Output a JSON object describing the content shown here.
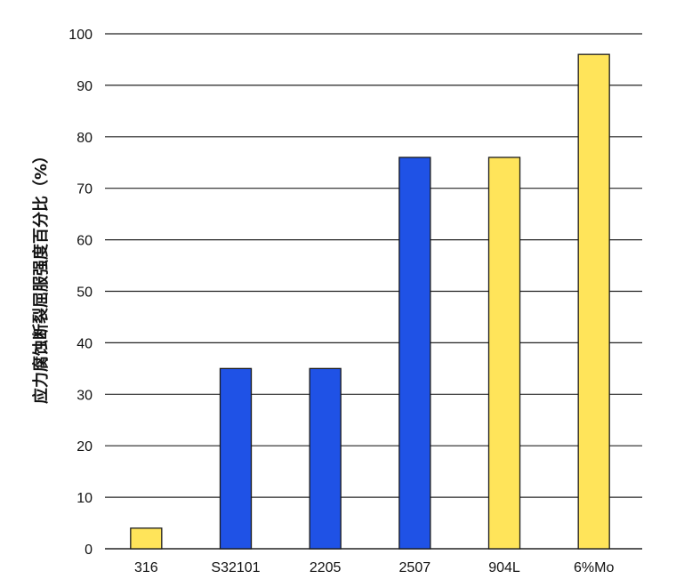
{
  "chart_data": {
    "type": "bar",
    "title": "",
    "xlabel": "",
    "ylabel": "应力腐蚀断裂屈服强度百分比（%）",
    "ylim": [
      0,
      100
    ],
    "yticks": [
      0,
      10,
      20,
      30,
      40,
      50,
      60,
      70,
      80,
      90,
      100
    ],
    "grid": true,
    "legend": "none",
    "categories": [
      "316",
      "S32101",
      "2205",
      "2507",
      "904L",
      "6%Mo"
    ],
    "values": [
      4,
      35,
      35,
      76,
      76,
      96
    ],
    "bar_colors": [
      "#FFE45A",
      "#1F52E6",
      "#1F52E6",
      "#1F52E6",
      "#FFE45A",
      "#FFE45A"
    ]
  },
  "colors": {
    "yellow": "#FFE45A",
    "blue": "#1F52E6",
    "bar_stroke": "#1a1a1a",
    "grid": "#222222"
  }
}
